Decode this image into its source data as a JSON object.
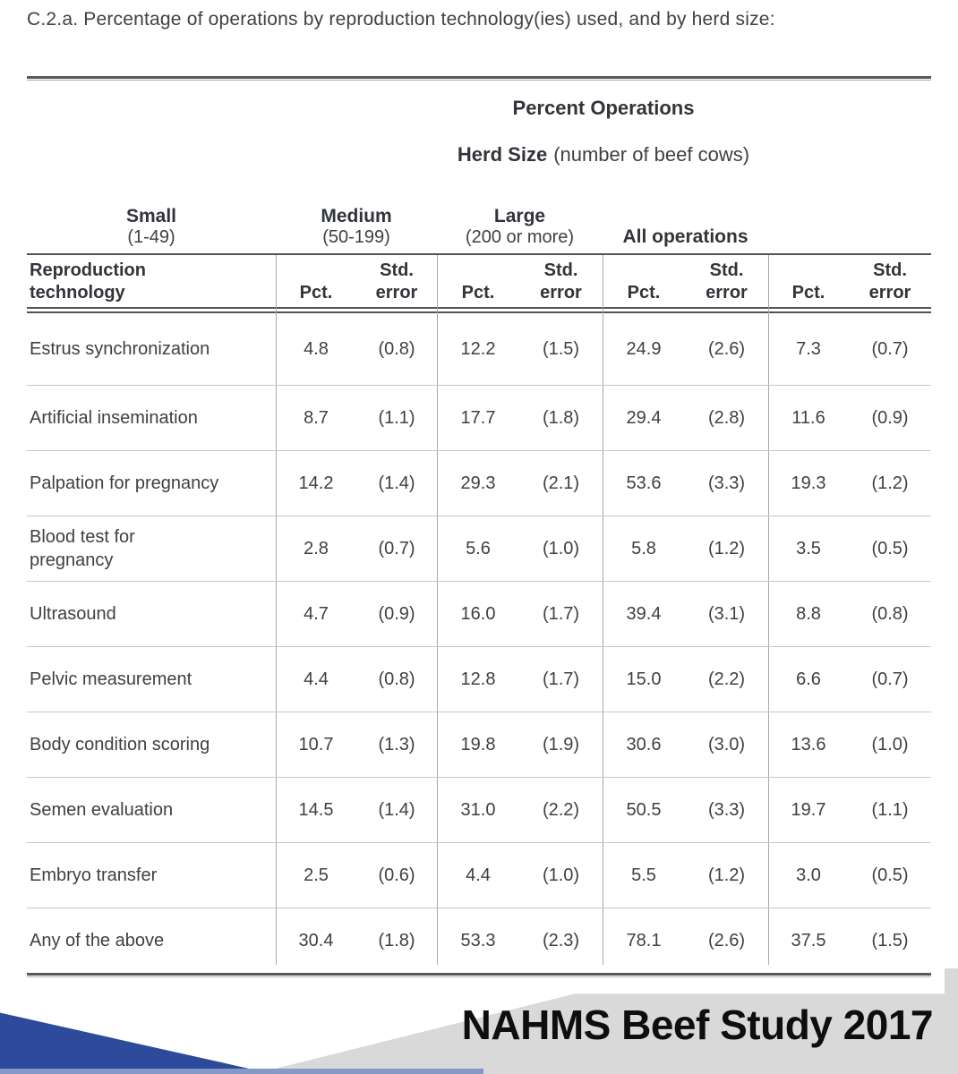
{
  "page": {
    "title": "C.2.a. Percentage of operations by reproduction technology(ies) used, and by herd size:"
  },
  "table": {
    "caption": "Percent Operations",
    "subtitle": {
      "bold": "Herd Size",
      "regular": "(number of beef cows)"
    },
    "groups": [
      {
        "name": "Small",
        "range": "(1-49)"
      },
      {
        "name": "Medium",
        "range": "(50-199)"
      },
      {
        "name": "Large",
        "range": "(200 or more)"
      },
      {
        "name": "All operations",
        "range": ""
      }
    ],
    "stub_header": "Reproduction\ntechnology",
    "subheaders": {
      "pct": "Pct.",
      "std": "Std.\nerror"
    },
    "rows": [
      {
        "label": "Estrus synchronization",
        "values": [
          "4.8",
          "(0.8)",
          "12.2",
          "(1.5)",
          "24.9",
          "(2.6)",
          "7.3",
          "(0.7)"
        ]
      },
      {
        "label": "Artificial insemination",
        "values": [
          "8.7",
          "(1.1)",
          "17.7",
          "(1.8)",
          "29.4",
          "(2.8)",
          "11.6",
          "(0.9)"
        ]
      },
      {
        "label": "Palpation for pregnancy",
        "values": [
          "14.2",
          "(1.4)",
          "29.3",
          "(2.1)",
          "53.6",
          "(3.3)",
          "19.3",
          "(1.2)"
        ]
      },
      {
        "label": "Blood test for\npregnancy",
        "values": [
          "2.8",
          "(0.7)",
          "5.6",
          "(1.0)",
          "5.8",
          "(1.2)",
          "3.5",
          "(0.5)"
        ]
      },
      {
        "label": "Ultrasound",
        "values": [
          "4.7",
          "(0.9)",
          "16.0",
          "(1.7)",
          "39.4",
          "(3.1)",
          "8.8",
          "(0.8)"
        ]
      },
      {
        "label": "Pelvic measurement",
        "values": [
          "4.4",
          "(0.8)",
          "12.8",
          "(1.7)",
          "15.0",
          "(2.2)",
          "6.6",
          "(0.7)"
        ]
      },
      {
        "label": "Body condition scoring",
        "values": [
          "10.7",
          "(1.3)",
          "19.8",
          "(1.9)",
          "30.6",
          "(3.0)",
          "13.6",
          "(1.0)"
        ]
      },
      {
        "label": "Semen evaluation",
        "values": [
          "14.5",
          "(1.4)",
          "31.0",
          "(2.2)",
          "50.5",
          "(3.3)",
          "19.7",
          "(1.1)"
        ]
      },
      {
        "label": "Embryo transfer",
        "values": [
          "2.5",
          "(0.6)",
          "4.4",
          "(1.0)",
          "5.5",
          "(1.2)",
          "3.0",
          "(0.5)"
        ]
      },
      {
        "label": "Any of the above",
        "values": [
          "30.4",
          "(1.8)",
          "53.3",
          "(2.3)",
          "78.1",
          "(2.6)",
          "37.5",
          "(1.5)"
        ]
      }
    ]
  },
  "footer": {
    "banner": "NAHMS Beef Study 2017"
  },
  "colors": {
    "accent_blue": "#2d4a9b",
    "light_blue_strip": "#8499c7",
    "banner_gray": "#d9d9d9",
    "rule_dark": "#515358",
    "grid_light": "#c6c7c9",
    "text": "#3d4045"
  }
}
